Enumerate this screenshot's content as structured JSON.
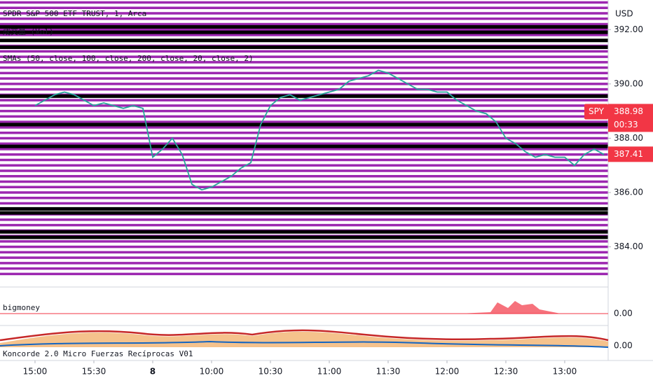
{
  "chart_data": {
    "type": "line",
    "title": "SPDR S&P 500 ETF TRUST, 1, Arca",
    "volume_label": "成交量 (Vol)",
    "indicator_label": "SMAs (50, close, 100, close, 200, close, 20, close, 2)",
    "currency": "USD",
    "symbol": "SPY",
    "last_price": 388.98,
    "countdown": "00:33",
    "level_price": 387.41,
    "panes": [
      {
        "name": "bigmoney",
        "value": {
          "value": 0,
          "label": "0.00"
        }
      },
      {
        "name": "Koncorde 2.0 Micro Fuerzas Recíprocas V01",
        "value": {
          "value": 0,
          "label": "0.00"
        }
      }
    ],
    "x": [
      0,
      1,
      2,
      3,
      4,
      5,
      6,
      7,
      8,
      9,
      10,
      11,
      12,
      13,
      14,
      15,
      16,
      17,
      18,
      19,
      20,
      21,
      22,
      23,
      24,
      25,
      26,
      27,
      28,
      29,
      30,
      31,
      32,
      33,
      34,
      35,
      36,
      37,
      38,
      39,
      40,
      41,
      42,
      43,
      44,
      45,
      46,
      47,
      48,
      49,
      50,
      51,
      52,
      53,
      54,
      55,
      56,
      57,
      58
    ],
    "series": [
      {
        "name": "SPDR S&P 500 ETF TRUST, 1, Arca",
        "color": "#26a69a",
        "values": [
          389.2,
          389.4,
          389.6,
          389.7,
          389.6,
          389.4,
          389.2,
          389.3,
          389.2,
          389.1,
          389.2,
          389.1,
          387.3,
          387.6,
          388.0,
          387.4,
          386.3,
          386.1,
          386.2,
          386.4,
          386.6,
          386.9,
          387.1,
          388.5,
          389.2,
          389.5,
          389.6,
          389.4,
          389.5,
          389.6,
          389.7,
          389.8,
          390.1,
          390.2,
          390.3,
          390.5,
          390.4,
          390.2,
          390.0,
          389.8,
          389.8,
          389.7,
          389.7,
          389.4,
          389.2,
          389.0,
          388.9,
          388.6,
          388.0,
          387.8,
          387.5,
          387.3,
          387.4,
          387.3,
          387.3,
          387.0,
          387.4,
          387.6,
          387.4
        ]
      }
    ],
    "h_lines": [
      {
        "color": "#9c27b0",
        "values": [
          383.0,
          383.2,
          383.4,
          383.6,
          383.8,
          384.0,
          384.2,
          384.4,
          384.6,
          384.8,
          385.0,
          385.2,
          385.4,
          385.6,
          385.8,
          386.0,
          386.2,
          386.4,
          386.6,
          386.8,
          387.0,
          387.2,
          387.4,
          387.6,
          387.8,
          388.0,
          388.2,
          388.4,
          388.6,
          388.8,
          389.0,
          389.2,
          389.4,
          389.6,
          389.8,
          390.0,
          390.2,
          390.4,
          390.6,
          390.8,
          391.0,
          391.2,
          391.4,
          391.6,
          391.8,
          392.0,
          392.2,
          392.4,
          392.6,
          392.8,
          393.0
        ]
      },
      {
        "color": "#000000",
        "values": [
          392.1,
          391.9,
          391.6,
          391.35,
          389.55,
          388.5,
          387.7,
          385.4,
          385.25,
          384.55,
          384.35
        ]
      }
    ],
    "xlim": [
      -3.57,
      58.43
    ],
    "ylim": [
      382.65,
      393.09
    ],
    "yticks": [
      {
        "value": 384,
        "label": "384.00"
      },
      {
        "value": 386,
        "label": "386.00"
      },
      {
        "value": 388,
        "label": "388.00"
      },
      {
        "value": 390,
        "label": "390.00"
      },
      {
        "value": 392,
        "label": "392.00"
      }
    ],
    "xticks": [
      {
        "value": 0,
        "label": "15:00"
      },
      {
        "value": 6,
        "label": "15:30"
      },
      {
        "value": 12,
        "label": "8"
      },
      {
        "value": 18,
        "label": "10:00"
      },
      {
        "value": 24,
        "label": "10:30"
      },
      {
        "value": 30,
        "label": "11:00"
      },
      {
        "value": 36,
        "label": "11:30"
      },
      {
        "value": 42,
        "label": "12:00"
      },
      {
        "value": 48,
        "label": "12:30"
      },
      {
        "value": 54,
        "label": "13:00"
      }
    ]
  }
}
